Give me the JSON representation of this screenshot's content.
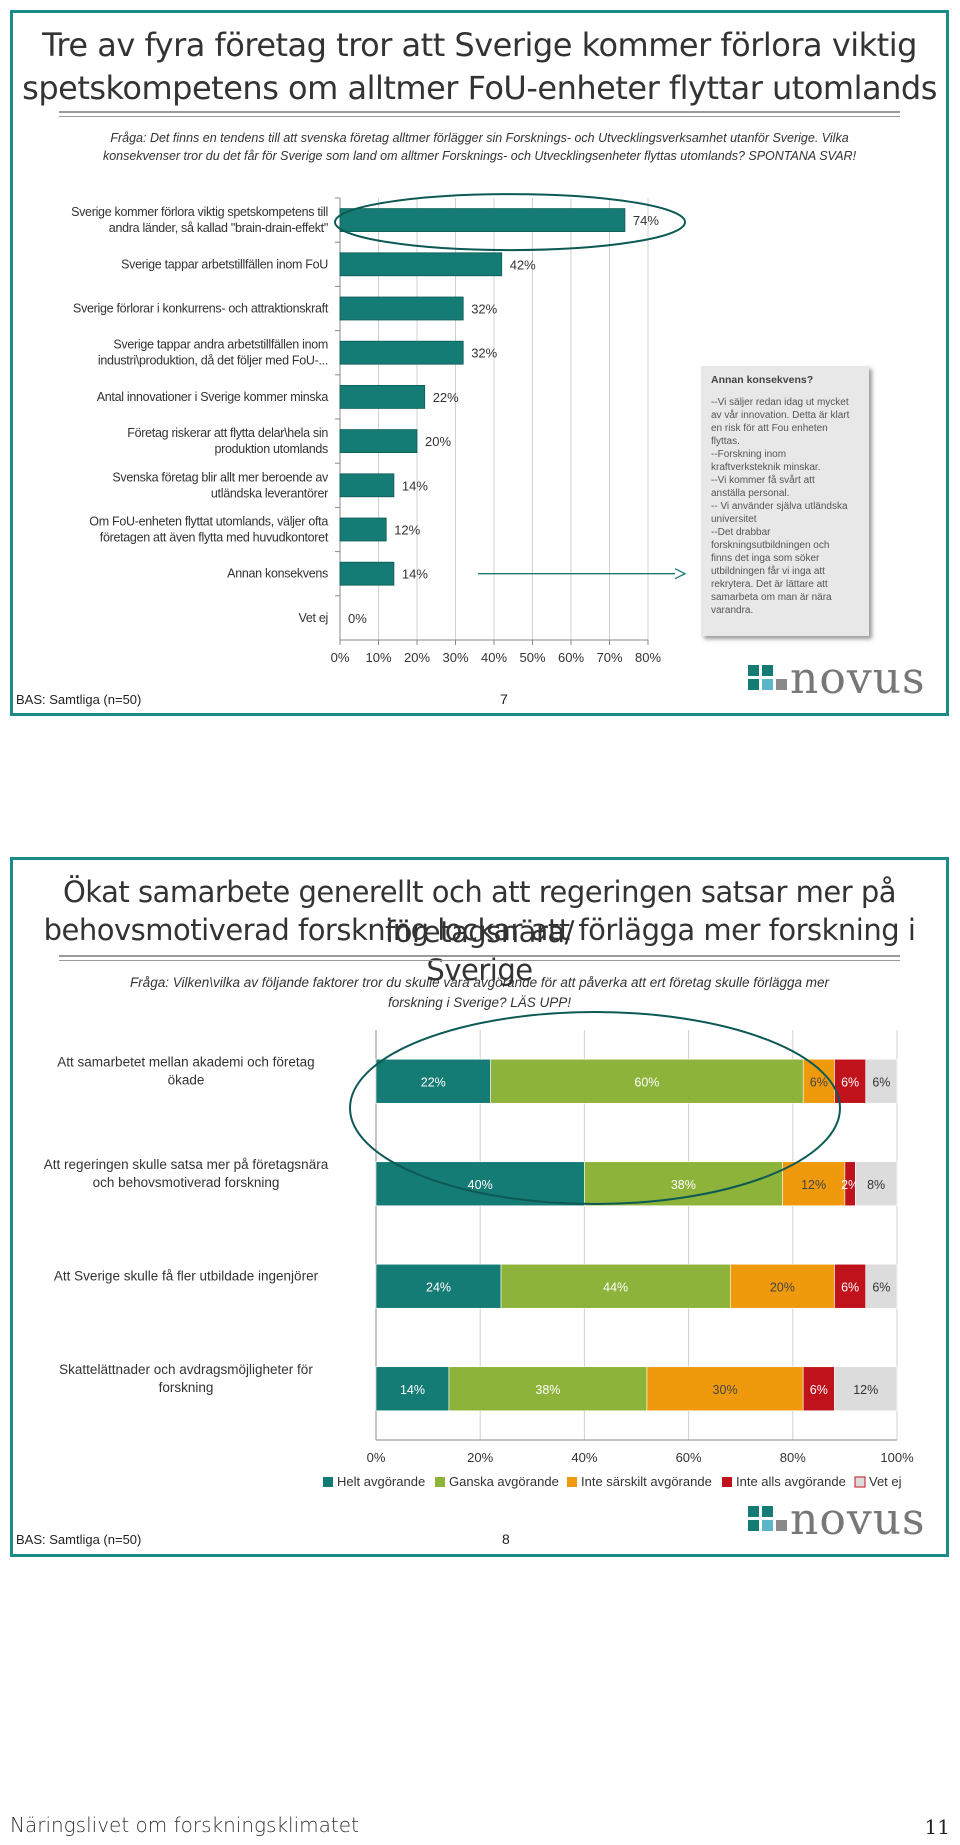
{
  "colors": {
    "teal": "#157b75",
    "green": "#8db33b",
    "orange": "#ee9a0c",
    "red": "#c0121b",
    "gray": "#dcdcdc",
    "frame": "#1a8a8a"
  },
  "slide1": {
    "title_line1": "Tre av fyra företag tror att Sverige kommer förlora viktig",
    "title_line2": "spetskompetens om alltmer FoU-enheter flyttar utomlands",
    "question_line1": "Fråga: Det finns en tendens till att svenska företag alltmer förlägger sin Forsknings- och Utvecklingsverksamhet utanför Sverige. Vilka",
    "question_line2": "konsekvenser tror du det får för Sverige som land om alltmer Forsknings- och Utvecklingsenheter flyttas utomlands? SPONTANA SVAR!",
    "base": "BAS: Samtliga (n=50)",
    "page": "7",
    "logo": "novus",
    "side_box": {
      "title": "Annan konsekvens?",
      "lines": [
        "--Vi säljer redan idag ut mycket",
        "av vår innovation. Detta är klart",
        "en risk för att Fou enheten",
        "flyttas.",
        "--Forskning inom",
        "kraftverksteknik minskar.",
        "--Vi kommer få svårt att",
        "anställa personal.",
        "-- Vi använder själva utländska",
        "universitet",
        "--Det drabbar",
        "forskningsutbildningen och",
        "finns det inga som söker",
        "utbildningen får vi inga att",
        "rekrytera. Det är lättare att",
        "samarbeta om man är nära",
        "varandra."
      ]
    }
  },
  "slide2": {
    "title_line1": "Ökat samarbete generellt och att regeringen satsar mer på företagsnära/",
    "title_line2": "behovsmotiverad forskning lockar att förlägga mer forskning i Sverige",
    "question_line1": "Fråga: Vilken\\vilka av följande faktorer tror du skulle vara avgörande för att påverka att ert företag skulle förlägga mer",
    "question_line2": "forskning i Sverige? LÄS UPP!",
    "base": "BAS: Samtliga (n=50)",
    "page": "8",
    "logo": "novus"
  },
  "footer": {
    "text": "Näringslivet om forskningsklimatet",
    "page": "11"
  },
  "chart_data": [
    {
      "type": "bar",
      "orientation": "horizontal",
      "categories": [
        [
          "Sverige kommer förlora viktig spetskompetens till",
          "andra länder, så kallad \"brain-drain-effekt\""
        ],
        [
          "Sverige tappar arbetstillfällen inom FoU"
        ],
        [
          "Sverige förlorar i konkurrens- och attraktionskraft"
        ],
        [
          "Sverige tappar andra arbetstillfällen inom",
          "industri\\produktion, då det följer med FoU-..."
        ],
        [
          "Antal innovationer i Sverige kommer minska"
        ],
        [
          "Företag riskerar att flytta delar\\hela sin",
          "produktion utomlands"
        ],
        [
          "Svenska företag blir allt mer beroende av",
          "utländska leverantörer"
        ],
        [
          "Om FoU-enheten flyttat utomlands, väljer ofta",
          "företagen att även flytta med huvudkontoret"
        ],
        [
          "Annan konsekvens"
        ],
        [
          "Vet ej"
        ]
      ],
      "values": [
        74,
        42,
        32,
        32,
        22,
        20,
        14,
        12,
        14,
        0
      ],
      "value_labels": [
        "74%",
        "42%",
        "32%",
        "32%",
        "22%",
        "20%",
        "14%",
        "12%",
        "14%",
        "0%"
      ],
      "xlim": [
        0,
        80
      ],
      "xticks": [
        "0%",
        "10%",
        "20%",
        "30%",
        "40%",
        "50%",
        "60%",
        "70%",
        "80%"
      ],
      "grid": true,
      "highlight": "ellipse around first bar"
    },
    {
      "type": "bar",
      "orientation": "horizontal",
      "stacked": true,
      "categories": [
        [
          "Att samarbetet mellan akademi och företag",
          "ökade"
        ],
        [
          "Att regeringen skulle satsa mer på företagsnära",
          "och behovsmotiverad forskning"
        ],
        [
          "Att Sverige skulle få fler utbildade ingenjörer"
        ],
        [
          "Skattelättnader och avdragsmöjligheter för",
          "forskning"
        ]
      ],
      "series": [
        {
          "name": "Helt avgörande",
          "values": [
            22,
            40,
            24,
            14
          ],
          "labels": [
            "22%",
            "40%",
            "24%",
            "14%"
          ]
        },
        {
          "name": "Ganska avgörande",
          "values": [
            60,
            38,
            44,
            38
          ],
          "labels": [
            "60%",
            "38%",
            "44%",
            "38%"
          ]
        },
        {
          "name": "Inte särskilt avgörande",
          "values": [
            6,
            12,
            20,
            30
          ],
          "labels": [
            "6%",
            "12%",
            "20%",
            "30%"
          ]
        },
        {
          "name": "Inte alls avgörande",
          "values": [
            6,
            2,
            6,
            6
          ],
          "labels": [
            "6%",
            "2%",
            "6%",
            "6%"
          ]
        },
        {
          "name": "Vet ej",
          "values": [
            6,
            8,
            6,
            12
          ],
          "labels": [
            "6%",
            "8%",
            "6%",
            "12%"
          ]
        }
      ],
      "xlim": [
        0,
        100
      ],
      "xticks": [
        "0%",
        "20%",
        "40%",
        "60%",
        "80%",
        "100%"
      ],
      "grid": true,
      "legend": "bottom",
      "highlight": "ellipse around first two bars"
    }
  ]
}
